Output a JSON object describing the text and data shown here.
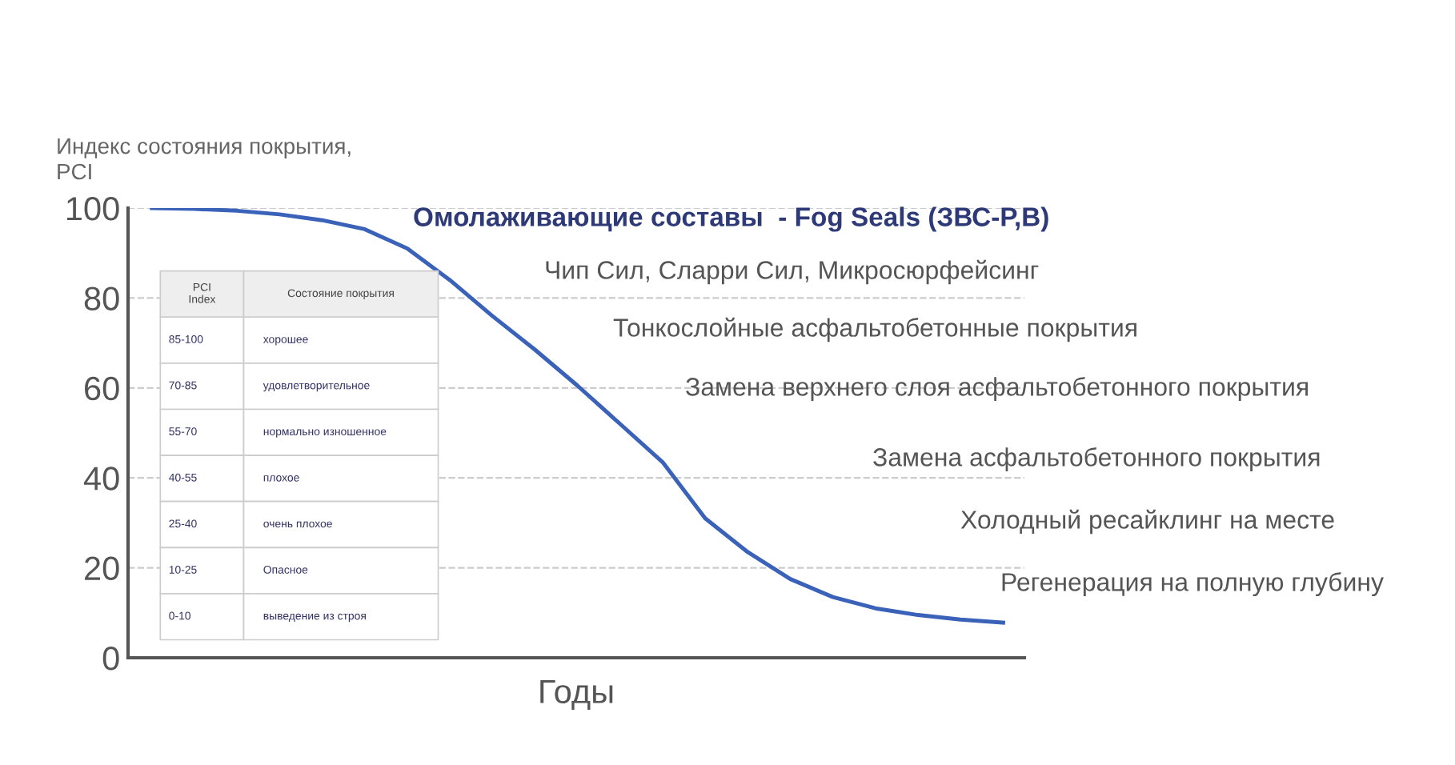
{
  "chart_data": {
    "type": "line",
    "ylabel": "Индекс состояния покрытия,\nPCI",
    "xlabel": "Годы",
    "categories": [
      null,
      null,
      null,
      null,
      null,
      null,
      null,
      null,
      null,
      null,
      null,
      null,
      null,
      null,
      null,
      null,
      null,
      null,
      null,
      null,
      null
    ],
    "series": [
      {
        "color": "#3a62b8",
        "values": [
          100,
          99.8,
          99.4,
          98.6,
          97.3,
          95.3,
          91,
          84,
          76,
          68.5,
          60.5,
          52,
          43.5,
          31,
          23.5,
          17.5,
          13.5,
          11,
          9.5,
          8.5,
          7.8
        ]
      }
    ],
    "ylim": [
      0,
      100
    ],
    "yticks": [
      0,
      20,
      40,
      60,
      80,
      100
    ],
    "grid": "y",
    "marker": "none",
    "line_style": "solid",
    "legend": false,
    "annotations": [
      "Омолаживающие составы  - Fog Seals (ЗВС-Р,В)",
      "Чип Сил, Сларри Сил, Микросюрфейсинг",
      "Тонкослойные асфальтобетонные покрытия",
      "Замена верхнего слоя асфальтобетонного покрытия",
      "Замена асфальтобетонного покрытия",
      "Холодный ресайклинг на месте",
      "Регенерация на полную глубину",
      "PCI\nIndex",
      "Состояние покрытия",
      "85-100",
      "хорошее",
      "70-85",
      "удовлетворительное",
      "55-70",
      "нормально изношенное",
      "40-55",
      "плохое",
      "25-40",
      "очень плохое",
      "10-25",
      "Опасное",
      "0-10",
      "выведение из строя"
    ]
  }
}
